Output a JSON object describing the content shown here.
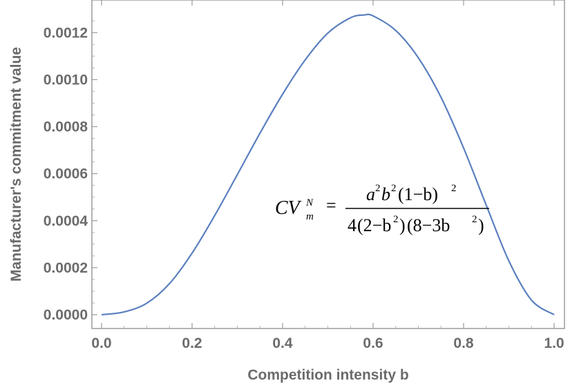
{
  "chart_data": {
    "type": "line",
    "title": "",
    "xlabel": "Competition intensity b",
    "ylabel": "Manufacturer's commitment value",
    "xlim": [
      0.0,
      1.0
    ],
    "ylim": [
      0.0,
      0.00128
    ],
    "x_ticks": [
      "0.0",
      "0.2",
      "0.4",
      "0.6",
      "0.8",
      "1.0"
    ],
    "y_ticks": [
      "0.0000",
      "0.0002",
      "0.0004",
      "0.0006",
      "0.0008",
      "0.0010",
      "0.0012"
    ],
    "grid": false,
    "legend": "none",
    "series_color": "#5a7fbf",
    "series": [
      {
        "x": [
          0.0,
          0.05,
          0.1,
          0.15,
          0.2,
          0.25,
          0.3,
          0.35,
          0.4,
          0.45,
          0.5,
          0.55,
          0.58,
          0.6,
          0.65,
          0.7,
          0.75,
          0.8,
          0.85,
          0.9,
          0.95,
          1.0
        ],
        "values": [
          0.0,
          1.2e-05,
          4.9e-05,
          0.000132,
          0.000262,
          0.000422,
          0.000596,
          0.000772,
          0.000938,
          0.001084,
          0.001198,
          0.001263,
          0.001275,
          0.001271,
          0.001209,
          0.001093,
          0.000925,
          0.000709,
          0.000466,
          0.000229,
          6.2e-05,
          0.0
        ]
      }
    ],
    "annotation": {
      "lhs_base": "CV",
      "lhs_sub": "m",
      "lhs_sup": "N",
      "equals": "=",
      "numerator": {
        "a": "a",
        "a_exp": "2",
        "b": "b",
        "b_exp": "2",
        "factor": "(1−b)",
        "factor_exp": "2"
      },
      "denominator": {
        "coef": "4",
        "f1_open": "(2−b",
        "f1_exp": "2",
        "f1_close": ")",
        "f2_open": "(8−3b",
        "f2_exp": "2",
        "f2_close": ")"
      }
    }
  }
}
